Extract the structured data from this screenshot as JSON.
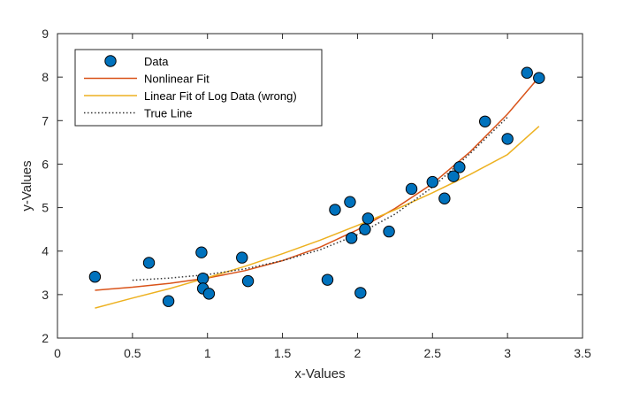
{
  "chart_data": {
    "type": "scatter",
    "title": "",
    "xlabel": "x-Values",
    "ylabel": "y-Values",
    "xlim": [
      0,
      3.5
    ],
    "ylim": [
      2,
      9
    ],
    "xticks": [
      0,
      0.5,
      1,
      1.5,
      2,
      2.5,
      3,
      3.5
    ],
    "xtick_labels": [
      "0",
      "0.5",
      "1",
      "1.5",
      "2",
      "2.5",
      "3",
      "3.5"
    ],
    "yticks": [
      2,
      3,
      4,
      5,
      6,
      7,
      8,
      9
    ],
    "ytick_labels": [
      "2",
      "3",
      "4",
      "5",
      "6",
      "7",
      "8",
      "9"
    ],
    "grid": false,
    "legend_position": "top-left",
    "series": [
      {
        "name": "Data",
        "kind": "scatter",
        "color": "#0072BD",
        "edge_color": "#000000",
        "points": [
          [
            0.25,
            3.41
          ],
          [
            0.61,
            3.73
          ],
          [
            0.74,
            2.85
          ],
          [
            0.96,
            3.97
          ],
          [
            0.97,
            3.37
          ],
          [
            0.97,
            3.14
          ],
          [
            1.01,
            3.02
          ],
          [
            1.23,
            3.85
          ],
          [
            1.27,
            3.31
          ],
          [
            1.8,
            3.34
          ],
          [
            1.85,
            4.95
          ],
          [
            1.95,
            5.13
          ],
          [
            1.96,
            4.3
          ],
          [
            2.02,
            3.04
          ],
          [
            2.05,
            4.5
          ],
          [
            2.07,
            4.75
          ],
          [
            2.21,
            4.45
          ],
          [
            2.36,
            5.43
          ],
          [
            2.5,
            5.59
          ],
          [
            2.58,
            5.21
          ],
          [
            2.64,
            5.72
          ],
          [
            2.68,
            5.93
          ],
          [
            2.85,
            6.98
          ],
          [
            3.0,
            6.58
          ],
          [
            3.13,
            8.1
          ],
          [
            3.21,
            7.98
          ]
        ]
      },
      {
        "name": "Nonlinear Fit",
        "kind": "line",
        "color": "#D95319",
        "dash": "solid",
        "points": [
          [
            0.25,
            3.1
          ],
          [
            0.5,
            3.17
          ],
          [
            0.75,
            3.26
          ],
          [
            1.0,
            3.38
          ],
          [
            1.25,
            3.55
          ],
          [
            1.5,
            3.78
          ],
          [
            1.75,
            4.09
          ],
          [
            2.0,
            4.49
          ],
          [
            2.25,
            4.98
          ],
          [
            2.5,
            5.55
          ],
          [
            2.75,
            6.28
          ],
          [
            3.0,
            7.15
          ],
          [
            3.21,
            8.0
          ]
        ]
      },
      {
        "name": "Linear Fit of Log Data (wrong)",
        "kind": "line",
        "color": "#EDB120",
        "dash": "solid",
        "points": [
          [
            0.25,
            2.69
          ],
          [
            0.5,
            2.92
          ],
          [
            0.75,
            3.14
          ],
          [
            1.0,
            3.39
          ],
          [
            1.25,
            3.65
          ],
          [
            1.5,
            3.94
          ],
          [
            1.75,
            4.25
          ],
          [
            2.0,
            4.59
          ],
          [
            2.25,
            4.95
          ],
          [
            2.5,
            5.34
          ],
          [
            2.75,
            5.76
          ],
          [
            3.0,
            6.22
          ],
          [
            3.21,
            6.87
          ]
        ]
      },
      {
        "name": "True Line",
        "kind": "line",
        "color": "#333333",
        "dash": "dotted",
        "points": [
          [
            0.5,
            3.33
          ],
          [
            0.75,
            3.38
          ],
          [
            1.0,
            3.46
          ],
          [
            1.25,
            3.59
          ],
          [
            1.5,
            3.78
          ],
          [
            1.75,
            4.03
          ],
          [
            2.0,
            4.38
          ],
          [
            2.25,
            4.85
          ],
          [
            2.5,
            5.47
          ],
          [
            2.75,
            6.24
          ],
          [
            3.0,
            7.08
          ]
        ]
      }
    ]
  }
}
